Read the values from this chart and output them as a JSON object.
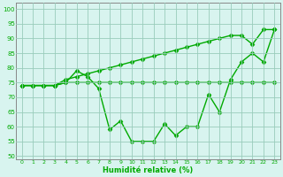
{
  "xlabel": "Humidité relative (%)",
  "xlim": [
    -0.5,
    23.5
  ],
  "ylim": [
    49,
    102
  ],
  "yticks": [
    50,
    55,
    60,
    65,
    70,
    75,
    80,
    85,
    90,
    95,
    100
  ],
  "xticks": [
    0,
    1,
    2,
    3,
    4,
    5,
    6,
    7,
    8,
    9,
    10,
    11,
    12,
    13,
    14,
    15,
    16,
    17,
    18,
    19,
    20,
    21,
    22,
    23
  ],
  "bg_color": "#d8f4ef",
  "grid_color": "#99ccbb",
  "line_color": "#00aa00",
  "series1": [
    74,
    74,
    74,
    74,
    75,
    79,
    77,
    73,
    59,
    62,
    55,
    55,
    55,
    61,
    57,
    60,
    60,
    71,
    65,
    76,
    82,
    85,
    82,
    93
  ],
  "series2": [
    74,
    74,
    74,
    74,
    75,
    75,
    75,
    75,
    75,
    75,
    75,
    75,
    75,
    75,
    75,
    75,
    75,
    75,
    75,
    75,
    75,
    75,
    75,
    75
  ],
  "series3": [
    74,
    74,
    74,
    74,
    76,
    77,
    78,
    79,
    80,
    81,
    82,
    83,
    84,
    85,
    86,
    87,
    88,
    89,
    90,
    91,
    91,
    88,
    93,
    93
  ],
  "marker": "D",
  "marker_size": 2.5,
  "line_width": 1.0
}
